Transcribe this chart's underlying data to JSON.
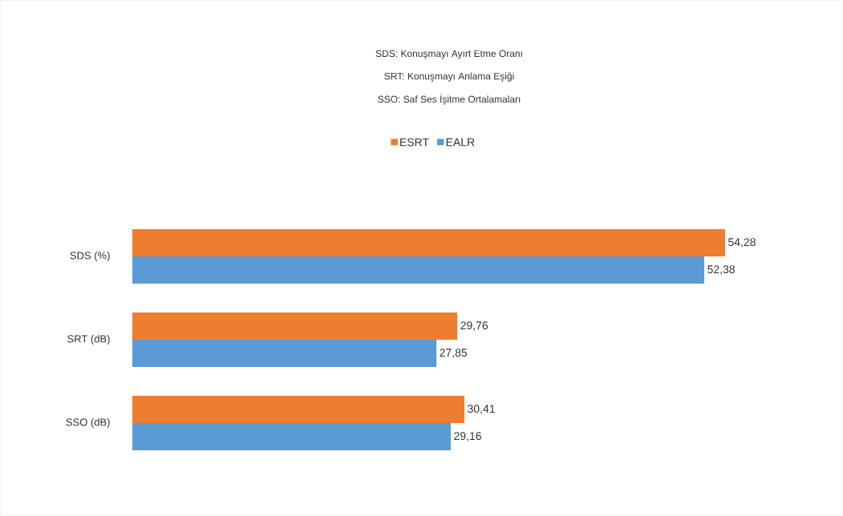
{
  "chart_data": {
    "type": "bar",
    "orientation": "horizontal",
    "annotations": [
      "SDS: Konuşmayı Ayırt Etme Oranı",
      "SRT: Konuşmayı Anlama Eşiği",
      "SSO: Saf Ses İşitme Ortalamaları"
    ],
    "categories": [
      "SDS (%)",
      "SRT (dB)",
      "SSO (dB)"
    ],
    "series": [
      {
        "name": "ESRT",
        "color": "#ed7d31",
        "values": [
          54.28,
          29.76,
          30.41
        ],
        "value_labels": [
          "54,28",
          "29,76",
          "30,41"
        ]
      },
      {
        "name": "EALR",
        "color": "#5b9bd5",
        "values": [
          52.38,
          27.85,
          29.16
        ],
        "value_labels": [
          "52,38",
          "27,85",
          "29,16"
        ]
      }
    ],
    "legend": "top"
  }
}
